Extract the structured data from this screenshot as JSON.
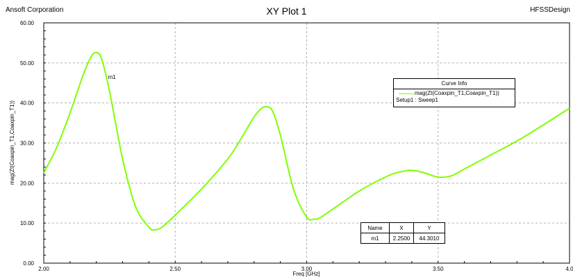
{
  "header": {
    "company": "Ansoft Corporation",
    "title": "XY Plot 1",
    "design": "HFSSDesign"
  },
  "legend": {
    "title": "Curve Info",
    "entry": "mag(Zt(Coaxpin_T1,Coaxpin_T1))",
    "sub": "Setup1 : Sweep1",
    "color": "#7fff00"
  },
  "marker_table": {
    "headers": [
      "Name",
      "X",
      "Y"
    ],
    "row": [
      "m1",
      "2.2500",
      "44.3010"
    ]
  },
  "chart_data": {
    "type": "line",
    "title": "XY Plot 1",
    "xlabel": "Freq [GHz]",
    "ylabel": "mag(Zt(Coaxpin_T1,Coaxpin_T1))",
    "xlim": [
      2.0,
      4.0
    ],
    "ylim": [
      0.0,
      60.0
    ],
    "xticks": [
      "2.00",
      "2.50",
      "3.00",
      "3.50",
      "4.0"
    ],
    "yticks": [
      "0.00",
      "10.00",
      "20.00",
      "30.00",
      "40.00",
      "50.00",
      "60.00"
    ],
    "grid": true,
    "legend_position": "top-right",
    "series": [
      {
        "name": "mag(Zt(Coaxpin_T1,Coaxpin_T1))",
        "color": "#7fff00",
        "x": [
          2.0,
          2.05,
          2.1,
          2.15,
          2.18,
          2.2,
          2.22,
          2.25,
          2.3,
          2.35,
          2.4,
          2.42,
          2.45,
          2.5,
          2.6,
          2.7,
          2.75,
          2.8,
          2.83,
          2.85,
          2.87,
          2.9,
          2.95,
          3.0,
          3.03,
          3.05,
          3.1,
          3.2,
          3.3,
          3.35,
          3.4,
          3.45,
          3.5,
          3.55,
          3.6,
          3.7,
          3.8,
          3.9,
          4.0
        ],
        "y": [
          22.5,
          29.0,
          37.5,
          47.0,
          51.5,
          52.6,
          51.0,
          43.0,
          26.0,
          14.0,
          9.0,
          8.3,
          9.0,
          12.0,
          18.5,
          26.0,
          31.0,
          36.5,
          38.7,
          39.0,
          38.0,
          32.0,
          18.5,
          11.5,
          11.0,
          11.3,
          13.5,
          18.0,
          21.5,
          22.7,
          23.2,
          22.5,
          21.5,
          21.8,
          23.5,
          27.0,
          30.5,
          34.5,
          38.7
        ]
      }
    ],
    "markers": [
      {
        "name": "m1",
        "x": 2.25,
        "y": 44.301
      }
    ]
  }
}
